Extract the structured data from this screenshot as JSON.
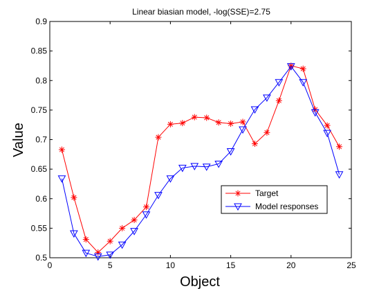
{
  "chart_data": {
    "type": "line",
    "title": "Linear biasian model, -log(SSE)=2.75",
    "xlabel": "Object",
    "ylabel": "Value",
    "xlim": [
      0,
      25
    ],
    "ylim": [
      0.5,
      0.9
    ],
    "xticks": [
      0,
      5,
      10,
      15,
      20,
      25
    ],
    "yticks": [
      0.5,
      0.55,
      0.6,
      0.65,
      0.7,
      0.75,
      0.8,
      0.85,
      0.9
    ],
    "grid": false,
    "legend_position": "lower-right",
    "x": [
      1,
      2,
      3,
      4,
      5,
      6,
      7,
      8,
      9,
      10,
      11,
      12,
      13,
      14,
      15,
      16,
      17,
      18,
      19,
      20,
      21,
      22,
      23,
      24
    ],
    "series": [
      {
        "name": "Target",
        "color": "#ff0000",
        "marker": "asterisk",
        "values": [
          0.683,
          0.602,
          0.531,
          0.509,
          0.528,
          0.55,
          0.564,
          0.586,
          0.704,
          0.726,
          0.728,
          0.738,
          0.737,
          0.729,
          0.727,
          0.73,
          0.693,
          0.712,
          0.766,
          0.825,
          0.82,
          0.751,
          0.724,
          0.688
        ]
      },
      {
        "name": "Model responses",
        "color": "#0000ff",
        "marker": "triangle-down",
        "values": [
          0.634,
          0.541,
          0.508,
          0.502,
          0.505,
          0.522,
          0.545,
          0.573,
          0.606,
          0.634,
          0.652,
          0.655,
          0.654,
          0.659,
          0.68,
          0.717,
          0.751,
          0.771,
          0.797,
          0.824,
          0.797,
          0.746,
          0.711,
          0.641
        ]
      }
    ]
  }
}
